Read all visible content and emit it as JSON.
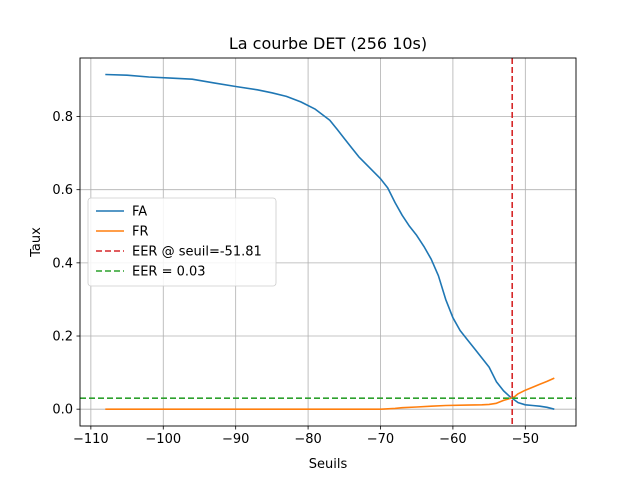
{
  "chart_data": {
    "type": "line",
    "title": "La courbe DET (256 10s)",
    "xlabel": "Seuils",
    "ylabel": "Taux",
    "xlim": [
      -111.5,
      -43.0
    ],
    "ylim": [
      -0.046,
      0.96
    ],
    "xticks": [
      -110,
      -100,
      -90,
      -80,
      -70,
      -60,
      -50
    ],
    "xtick_labels": [
      "−110",
      "−100",
      "−90",
      "−80",
      "−70",
      "−60",
      "−50"
    ],
    "yticks": [
      0.0,
      0.2,
      0.4,
      0.6,
      0.8
    ],
    "ytick_labels": [
      "0.0",
      "0.2",
      "0.4",
      "0.6",
      "0.8"
    ],
    "grid": true,
    "legend_position": "center-left",
    "series": [
      {
        "name": "FA",
        "color": "#1f77b4",
        "style": "solid",
        "points": [
          [
            -108,
            0.915
          ],
          [
            -105,
            0.913
          ],
          [
            -102,
            0.908
          ],
          [
            -99,
            0.905
          ],
          [
            -96,
            0.902
          ],
          [
            -93,
            0.892
          ],
          [
            -90,
            0.882
          ],
          [
            -87,
            0.873
          ],
          [
            -85,
            0.865
          ],
          [
            -83,
            0.855
          ],
          [
            -81,
            0.84
          ],
          [
            -79,
            0.82
          ],
          [
            -77,
            0.79
          ],
          [
            -76,
            0.765
          ],
          [
            -75,
            0.74
          ],
          [
            -74,
            0.715
          ],
          [
            -73,
            0.69
          ],
          [
            -72,
            0.67
          ],
          [
            -71,
            0.65
          ],
          [
            -70,
            0.63
          ],
          [
            -69,
            0.605
          ],
          [
            -68,
            0.565
          ],
          [
            -67,
            0.53
          ],
          [
            -66,
            0.5
          ],
          [
            -65,
            0.475
          ],
          [
            -64,
            0.445
          ],
          [
            -63,
            0.41
          ],
          [
            -62,
            0.365
          ],
          [
            -61,
            0.3
          ],
          [
            -60,
            0.25
          ],
          [
            -59,
            0.215
          ],
          [
            -58,
            0.19
          ],
          [
            -57,
            0.165
          ],
          [
            -56,
            0.14
          ],
          [
            -55,
            0.115
          ],
          [
            -54,
            0.075
          ],
          [
            -53,
            0.05
          ],
          [
            -52,
            0.032
          ],
          [
            -51.5,
            0.025
          ],
          [
            -51,
            0.018
          ],
          [
            -50,
            0.012
          ],
          [
            -49,
            0.01
          ],
          [
            -48,
            0.008
          ],
          [
            -47,
            0.005
          ],
          [
            -46,
            0.0
          ]
        ]
      },
      {
        "name": "FR",
        "color": "#ff7f0e",
        "style": "solid",
        "points": [
          [
            -108,
            0.0
          ],
          [
            -100,
            0.0
          ],
          [
            -90,
            0.0
          ],
          [
            -80,
            0.0
          ],
          [
            -70,
            0.0
          ],
          [
            -68,
            0.002
          ],
          [
            -67,
            0.004
          ],
          [
            -65,
            0.006
          ],
          [
            -63,
            0.008
          ],
          [
            -61,
            0.01
          ],
          [
            -58,
            0.011
          ],
          [
            -56,
            0.012
          ],
          [
            -55,
            0.013
          ],
          [
            -54,
            0.016
          ],
          [
            -53,
            0.024
          ],
          [
            -52,
            0.03
          ],
          [
            -51.5,
            0.034
          ],
          [
            -51,
            0.042
          ],
          [
            -50,
            0.052
          ],
          [
            -49,
            0.06
          ],
          [
            -48,
            0.068
          ],
          [
            -47,
            0.076
          ],
          [
            -46,
            0.085
          ]
        ]
      },
      {
        "name": "EER @ seuil=-51.81",
        "color": "#d62728",
        "style": "dashed",
        "vertical_x": -51.81
      },
      {
        "name": "EER = 0.03",
        "color": "#2ca02c",
        "style": "dashed",
        "horizontal_y": 0.03
      }
    ]
  }
}
